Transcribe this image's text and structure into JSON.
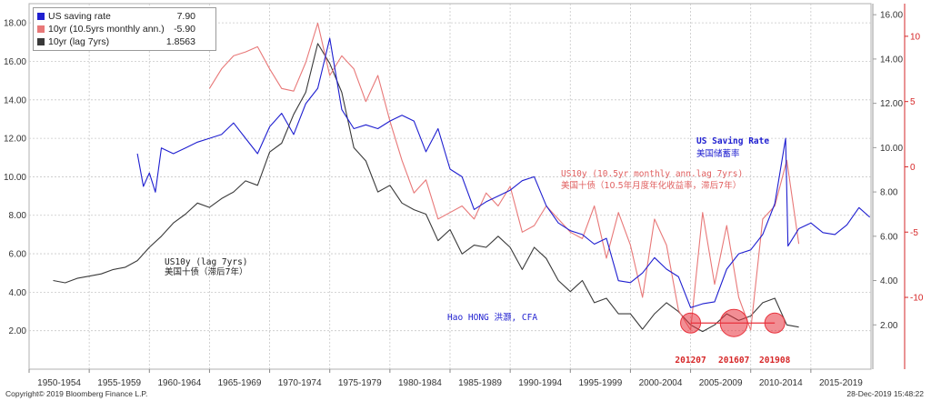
{
  "chart_data": {
    "type": "line",
    "x_range": [
      1950,
      2020
    ],
    "x_tick_labels": [
      "1950-1954",
      "1955-1959",
      "1960-1964",
      "1965-1969",
      "1970-1974",
      "1975-1979",
      "1980-1984",
      "1985-1989",
      "1990-1994",
      "1995-1999",
      "2000-2004",
      "2005-2009",
      "2010-2014",
      "2015-2019"
    ],
    "left_axis": {
      "ylim": [
        0,
        19
      ],
      "ticks": [
        "2.00",
        "4.00",
        "6.00",
        "8.00",
        "10.00",
        "12.00",
        "14.00",
        "16.00",
        "18.00"
      ]
    },
    "right_axis_inner": {
      "ylim": [
        0,
        16.5
      ],
      "ticks": [
        "2.00",
        "4.00",
        "6.00",
        "8.00",
        "10.00",
        "12.00",
        "14.00",
        "16.00"
      ]
    },
    "right_axis_outer": {
      "ylim": [
        -15.5,
        12.5
      ],
      "ticks": [
        "10",
        "5",
        "0",
        "-5",
        "-10"
      ],
      "color": "#d62728"
    },
    "grid": true,
    "legend_position": "top-left",
    "series": [
      {
        "name": "US saving rate",
        "value": "7.90",
        "color": "#1f1fd0",
        "axis": "left",
        "x": [
          1959,
          1959.5,
          1960,
          1960.5,
          1961,
          1962,
          1963,
          1964,
          1965,
          1966,
          1967,
          1968,
          1969,
          1970,
          1971,
          1972,
          1973,
          1974,
          1975,
          1976,
          1977,
          1978,
          1979,
          1980,
          1981,
          1982,
          1983,
          1984,
          1985,
          1986,
          1987,
          1988,
          1989,
          1990,
          1991,
          1992,
          1993,
          1994,
          1995,
          1996,
          1997,
          1998,
          1999,
          2000,
          2001,
          2002,
          2003,
          2004,
          2005,
          2006,
          2007,
          2008,
          2009,
          2010,
          2011,
          2012,
          2012.9,
          2013.1,
          2014,
          2015,
          2016,
          2017,
          2018,
          2019,
          2019.9
        ],
        "values": [
          11.2,
          9.5,
          10.2,
          9.2,
          11.5,
          11.2,
          11.5,
          11.8,
          12.0,
          12.2,
          12.8,
          12.0,
          11.2,
          12.6,
          13.3,
          12.2,
          13.8,
          14.6,
          17.2,
          13.5,
          12.5,
          12.7,
          12.5,
          12.9,
          13.2,
          12.9,
          11.3,
          12.5,
          10.4,
          10.0,
          8.3,
          8.7,
          9.0,
          9.3,
          9.8,
          10.0,
          8.5,
          7.6,
          7.2,
          7.0,
          6.5,
          6.8,
          4.6,
          4.5,
          5.0,
          5.8,
          5.2,
          4.8,
          3.2,
          3.4,
          3.5,
          5.2,
          6.0,
          6.2,
          7.0,
          8.6,
          12.0,
          6.4,
          7.3,
          7.6,
          7.1,
          7.0,
          7.5,
          8.4,
          7.9
        ]
      },
      {
        "name": "10yr (10.5yrs monthly ann.)",
        "value": "-5.90",
        "color": "#e87878",
        "axis": "right_outer",
        "x": [
          1965,
          1966,
          1967,
          1968,
          1969,
          1970,
          1971,
          1972,
          1973,
          1974,
          1975,
          1976,
          1977,
          1978,
          1979,
          1980,
          1981,
          1982,
          1983,
          1984,
          1985,
          1986,
          1987,
          1988,
          1989,
          1990,
          1991,
          1992,
          1993,
          1994,
          1995,
          1996,
          1997,
          1998,
          1999,
          2000,
          2001,
          2002,
          2003,
          2004,
          2005,
          2006,
          2007,
          2008,
          2009,
          2010,
          2011,
          2012,
          2013,
          2014
        ],
        "values": [
          6.0,
          7.5,
          8.5,
          8.8,
          9.2,
          7.5,
          6.0,
          5.8,
          8.0,
          11.0,
          7.0,
          8.5,
          7.5,
          5.0,
          7.0,
          3.5,
          0.5,
          -2.0,
          -1.0,
          -4.0,
          -3.5,
          -3.0,
          -4.0,
          -2.0,
          -3.0,
          -1.5,
          -5.0,
          -4.5,
          -3.0,
          -4.0,
          -5.0,
          -5.5,
          -3.0,
          -7.0,
          -3.5,
          -6.0,
          -10.0,
          -4.0,
          -6.0,
          -11.0,
          -12.5,
          -3.5,
          -9.0,
          -4.5,
          -10.0,
          -12.5,
          -4.0,
          -3.0,
          0.5,
          -5.9
        ]
      },
      {
        "name": "10yr (lag 7yrs)",
        "value": "1.8563",
        "color": "#3a3a3a",
        "axis": "right_inner",
        "x": [
          1952,
          1953,
          1954,
          1955,
          1956,
          1957,
          1958,
          1959,
          1960,
          1961,
          1962,
          1963,
          1964,
          1965,
          1966,
          1967,
          1968,
          1969,
          1970,
          1971,
          1972,
          1973,
          1974,
          1975,
          1976,
          1977,
          1978,
          1979,
          1980,
          1981,
          1982,
          1983,
          1984,
          1985,
          1986,
          1987,
          1988,
          1989,
          1990,
          1991,
          1992,
          1993,
          1994,
          1995,
          1996,
          1997,
          1998,
          1999,
          2000,
          2001,
          2002,
          2003,
          2004,
          2005,
          2006,
          2007,
          2008,
          2009,
          2010,
          2011,
          2012,
          2013,
          2014
        ],
        "values": [
          4.0,
          3.9,
          4.1,
          4.2,
          4.3,
          4.5,
          4.6,
          4.9,
          5.5,
          6.0,
          6.6,
          7.0,
          7.5,
          7.3,
          7.7,
          8.0,
          8.5,
          8.3,
          9.8,
          10.2,
          11.5,
          12.5,
          14.7,
          13.8,
          12.5,
          10.0,
          9.4,
          8.0,
          8.3,
          7.5,
          7.2,
          7.0,
          5.8,
          6.3,
          5.2,
          5.6,
          5.5,
          6.0,
          5.5,
          4.5,
          5.5,
          5.0,
          4.0,
          3.5,
          4.0,
          3.0,
          3.2,
          2.5,
          2.5,
          1.8,
          2.5,
          3.0,
          2.6,
          2.0,
          1.7,
          2.0,
          2.5,
          2.2,
          2.4,
          3.0,
          3.2,
          2.0,
          1.9
        ]
      }
    ],
    "annotations": [
      {
        "name": "saving-label",
        "text": "US Saving Rate",
        "text2": "美国储蓄率",
        "color": "#1f1fd0"
      },
      {
        "name": "us10y-label",
        "text": "US10y (10.5yr monthly ann.lag 7yrs)",
        "text2": "美国十债（10.5年月度年化收益率，滞后7年）",
        "color": "#e06060"
      },
      {
        "name": "lag-label",
        "text": "US10y (lag 7yrs)",
        "text2": "美国十债（滞后7年）",
        "color": "#222222"
      },
      {
        "name": "author-label",
        "text": "Hao HONG 洪灏, CFA",
        "color": "#1f1fd0"
      }
    ],
    "circles": [
      {
        "label": "201207",
        "x": 2005.0,
        "y": 2.4,
        "size": 11
      },
      {
        "label": "201607",
        "x": 2008.6,
        "y": 2.4,
        "size": 15
      },
      {
        "label": "201908",
        "x": 2012.0,
        "y": 2.4,
        "size": 11
      }
    ],
    "circle_color": "#e8323c"
  },
  "footer": {
    "left": "Copyright© 2019 Bloomberg Finance L.P.",
    "right": "28-Dec-2019 15:48:22"
  }
}
